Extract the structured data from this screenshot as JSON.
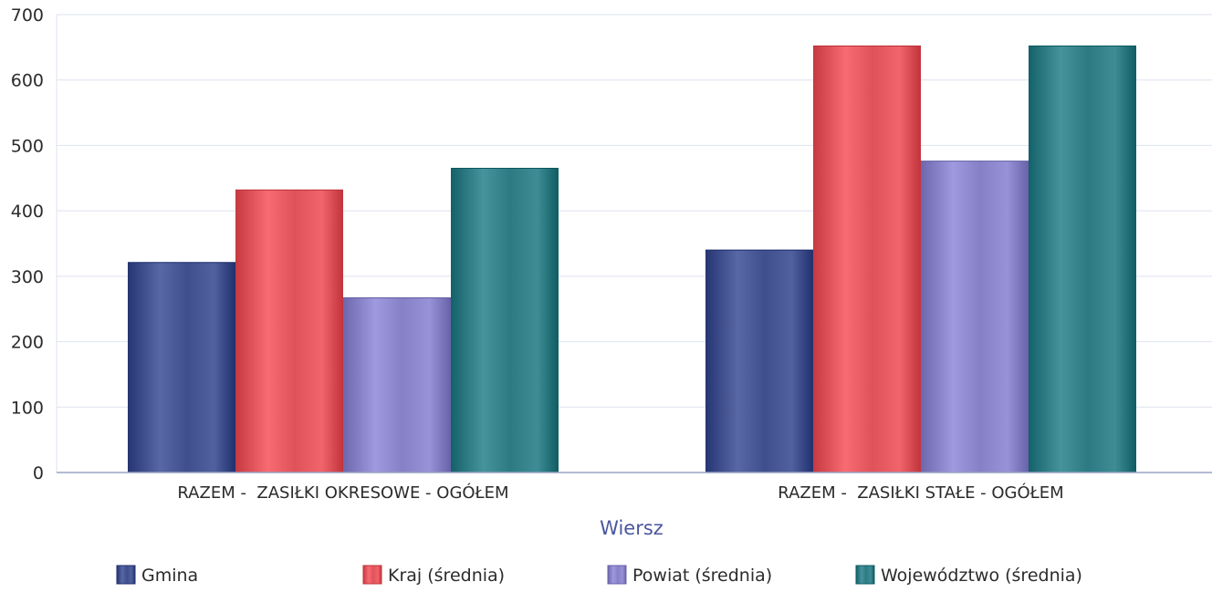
{
  "chart_data": {
    "type": "bar",
    "title": "",
    "xlabel": "Wiersz",
    "ylabel": "",
    "ylim": [
      0,
      700
    ],
    "yticks": [
      0,
      100,
      200,
      300,
      400,
      500,
      600,
      700
    ],
    "grid": true,
    "legend_position": "bottom",
    "categories": [
      "RAZEM -  ZASIŁKI OKRESOWE - OGÓŁEM",
      "RAZEM -  ZASIŁKI STAŁE - OGÓŁEM"
    ],
    "series": [
      {
        "name": "Gmina",
        "values": [
          321,
          340
        ],
        "color": "#3f4e8c"
      },
      {
        "name": "Kraj (średnia)",
        "values": [
          432,
          652
        ],
        "color": "#df5259"
      },
      {
        "name": "Powiat (średnia)",
        "values": [
          267,
          476
        ],
        "color": "#8680c6"
      },
      {
        "name": "Województwo (średnia)",
        "values": [
          465,
          652
        ],
        "color": "#2d7a82"
      }
    ]
  }
}
